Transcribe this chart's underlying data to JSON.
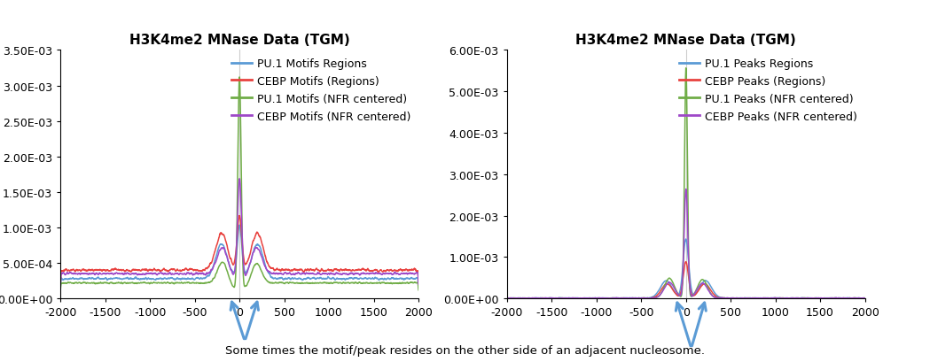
{
  "title_left": "H3K4me2 MNase Data (TGM)",
  "title_right": "H3K4me2 MNase Data (TGM)",
  "xlim": [
    -2000,
    2000
  ],
  "xticks": [
    -2000,
    -1500,
    -1000,
    -500,
    0,
    500,
    1000,
    1500,
    2000
  ],
  "left_ylim": [
    0,
    0.0035
  ],
  "left_yticks": [
    0.0,
    0.0005,
    0.001,
    0.0015,
    0.002,
    0.0025,
    0.003,
    0.0035
  ],
  "left_ytick_labels": [
    "0.00E+00",
    "5.00E-04",
    "1.00E-03",
    "1.50E-03",
    "2.00E-03",
    "2.50E-03",
    "3.00E-03",
    "3.50E-03"
  ],
  "right_ylim": [
    0,
    0.006
  ],
  "right_yticks": [
    0.0,
    0.001,
    0.002,
    0.003,
    0.004,
    0.005,
    0.006
  ],
  "right_ytick_labels": [
    "0.00E+00",
    "1.00E-03",
    "2.00E-03",
    "3.00E-03",
    "4.00E-03",
    "5.00E-03",
    "6.00E-03"
  ],
  "left_legend": [
    "PU.1 Motifs Regions",
    "CEBP Motifs (Regions)",
    "PU.1 Motifs (NFR centered)",
    "CEBP Motifs (NFR centered)"
  ],
  "right_legend": [
    "PU.1 Peaks Regions",
    "CEBP Peaks (Regions)",
    "PU.1 Peaks (NFR centered)",
    "CEBP Peaks (NFR centered)"
  ],
  "colors": [
    "#5b9bd5",
    "#e8423f",
    "#70ad47",
    "#9e48c8"
  ],
  "annotation_text": "Some times the motif/peak resides on the other side of an adjacent nucleosome.",
  "background_color": "#ffffff",
  "title_fontsize": 11,
  "label_fontsize": 9,
  "legend_fontsize": 9,
  "arrow_color": "#5b9bd5"
}
